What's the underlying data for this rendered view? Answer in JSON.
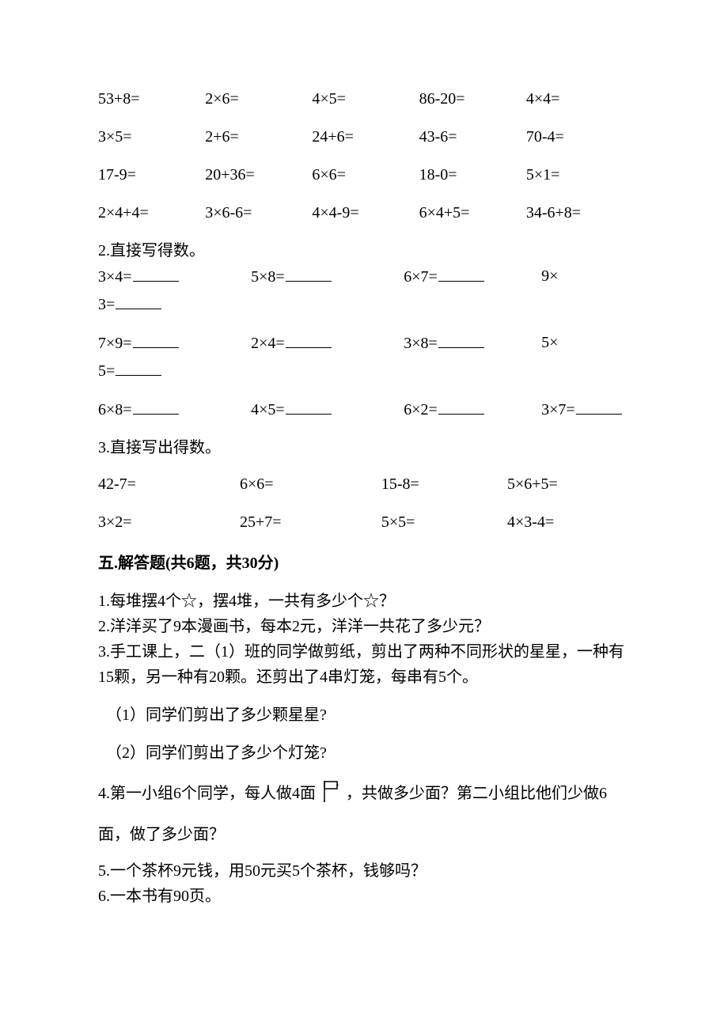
{
  "calc_rows": [
    [
      "53+8=",
      "2×6=",
      "4×5=",
      "86-20=",
      "4×4="
    ],
    [
      "3×5=",
      "2+6=",
      "24+6=",
      "43-6=",
      "70-4="
    ],
    [
      "17-9=",
      "20+36=",
      "6×6=",
      "18-0=",
      "5×1="
    ],
    [
      "2×4+4=",
      "3×6-6=",
      "4×4-9=",
      "6×4+5=",
      "34-6+8="
    ]
  ],
  "section2_label": "2.直接写得数。",
  "section2_rows": [
    {
      "c1": "3×4=",
      "c2": "5×8=",
      "c3": "6×7=",
      "c4a": "9×",
      "c4b": "3=",
      "blank4": true
    },
    {
      "c1": "7×9=",
      "c2": "2×4=",
      "c3": "3×8=",
      "c4a": "5×",
      "c4b": "5=",
      "blank4": true
    },
    {
      "c1": "6×8=",
      "c2": "4×5=",
      "c3": "6×2=",
      "c4a": "3×7=",
      "c4b": "",
      "blank4": false
    }
  ],
  "section2_col_widths": {
    "c1": 200,
    "c2": 200,
    "c3": 180,
    "c4": 120
  },
  "section3_label": "3.直接写出得数。",
  "section3_rows": [
    [
      "42-7=",
      "6×6=",
      "15-8=",
      "5×6+5="
    ],
    [
      "3×2=",
      "25+7=",
      "5×5=",
      "4×3-4="
    ]
  ],
  "section3_col_widths": [
    180,
    180,
    160,
    160
  ],
  "section5_header": "五.解答题(共6题，共30分)",
  "q1": "1.每堆摆4个☆，摆4堆，一共有多少个☆？",
  "q2": "2.洋洋买了9本漫画书，每本2元，洋洋一共花了多少元？",
  "q3a": "3.手工课上，二（1）班的同学做剪纸，剪出了两种不同形状的星星，一种有",
  "q3b": "15颗，另一种有20颗。还剪出了4串灯笼，每串有5个。",
  "q3_1": "（1）同学们剪出了多少颗星星?",
  "q3_2": "（2）同学们剪出了多少个灯笼?",
  "q4a": "4.第一小组6个同学，每人做4面",
  "q4b": "，共做多少面？第二小组比他们少做6",
  "q4c": "面，做了多少面？",
  "q5": "5.一个茶杯9元钱，用50元买5个茶杯，钱够吗？",
  "q6": "6.一本书有90页。",
  "flag_icon": {
    "width": 28,
    "height": 30,
    "stroke": "#000000"
  }
}
